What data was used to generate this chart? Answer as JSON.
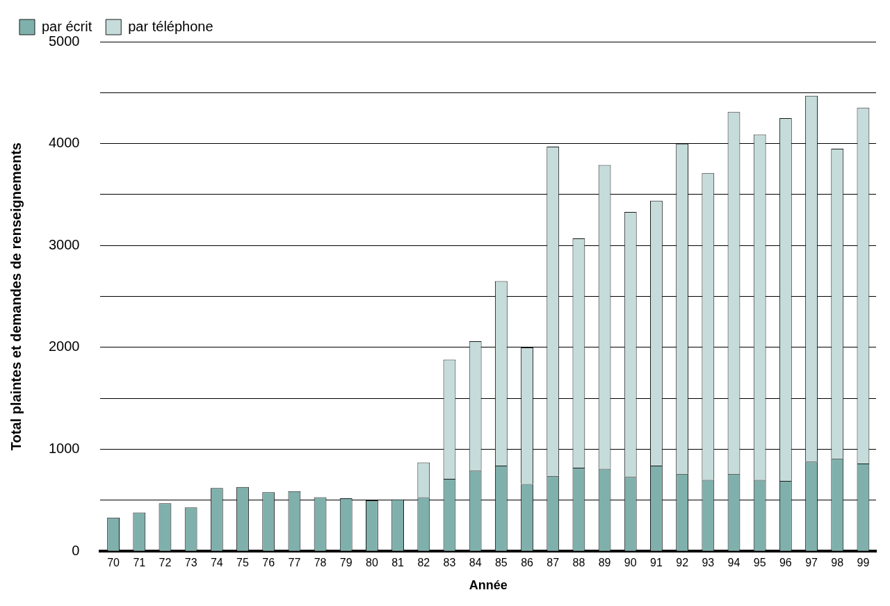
{
  "chart_data": {
    "type": "bar",
    "stacked": true,
    "xlabel": "Année",
    "ylabel": "Total plaintes et demandes de renseignements",
    "categories": [
      "70",
      "71",
      "72",
      "73",
      "74",
      "75",
      "76",
      "77",
      "78",
      "79",
      "80",
      "81",
      "82",
      "83",
      "84",
      "85",
      "86",
      "87",
      "88",
      "89",
      "90",
      "91",
      "92",
      "93",
      "94",
      "95",
      "96",
      "97",
      "98",
      "99"
    ],
    "series": [
      {
        "name": "par écrit",
        "color": "#7fb0ac",
        "values": [
          330,
          380,
          470,
          430,
          620,
          630,
          580,
          590,
          530,
          520,
          500,
          510,
          530,
          710,
          790,
          840,
          660,
          740,
          820,
          810,
          730,
          840,
          760,
          700,
          760,
          700,
          690,
          880,
          910,
          860
        ]
      },
      {
        "name": "par téléphone",
        "color": "#c5dcda",
        "values": [
          null,
          null,
          null,
          null,
          null,
          null,
          null,
          null,
          null,
          null,
          null,
          null,
          340,
          1170,
          1270,
          1810,
          1340,
          3230,
          2250,
          2980,
          2600,
          2600,
          3240,
          3010,
          3550,
          3390,
          3560,
          3590,
          3040,
          3490
        ]
      }
    ],
    "ylim": [
      0,
      5000
    ],
    "yticks": [
      0,
      {
        "value": 500,
        "label": null
      },
      1000,
      {
        "value": 1500,
        "label": null
      },
      2000,
      {
        "value": 2500,
        "label": null
      },
      3000,
      {
        "value": 3500,
        "label": null
      },
      4000,
      {
        "value": 4500,
        "label": null
      },
      5000
    ],
    "grid": "y",
    "legend": "top left"
  }
}
